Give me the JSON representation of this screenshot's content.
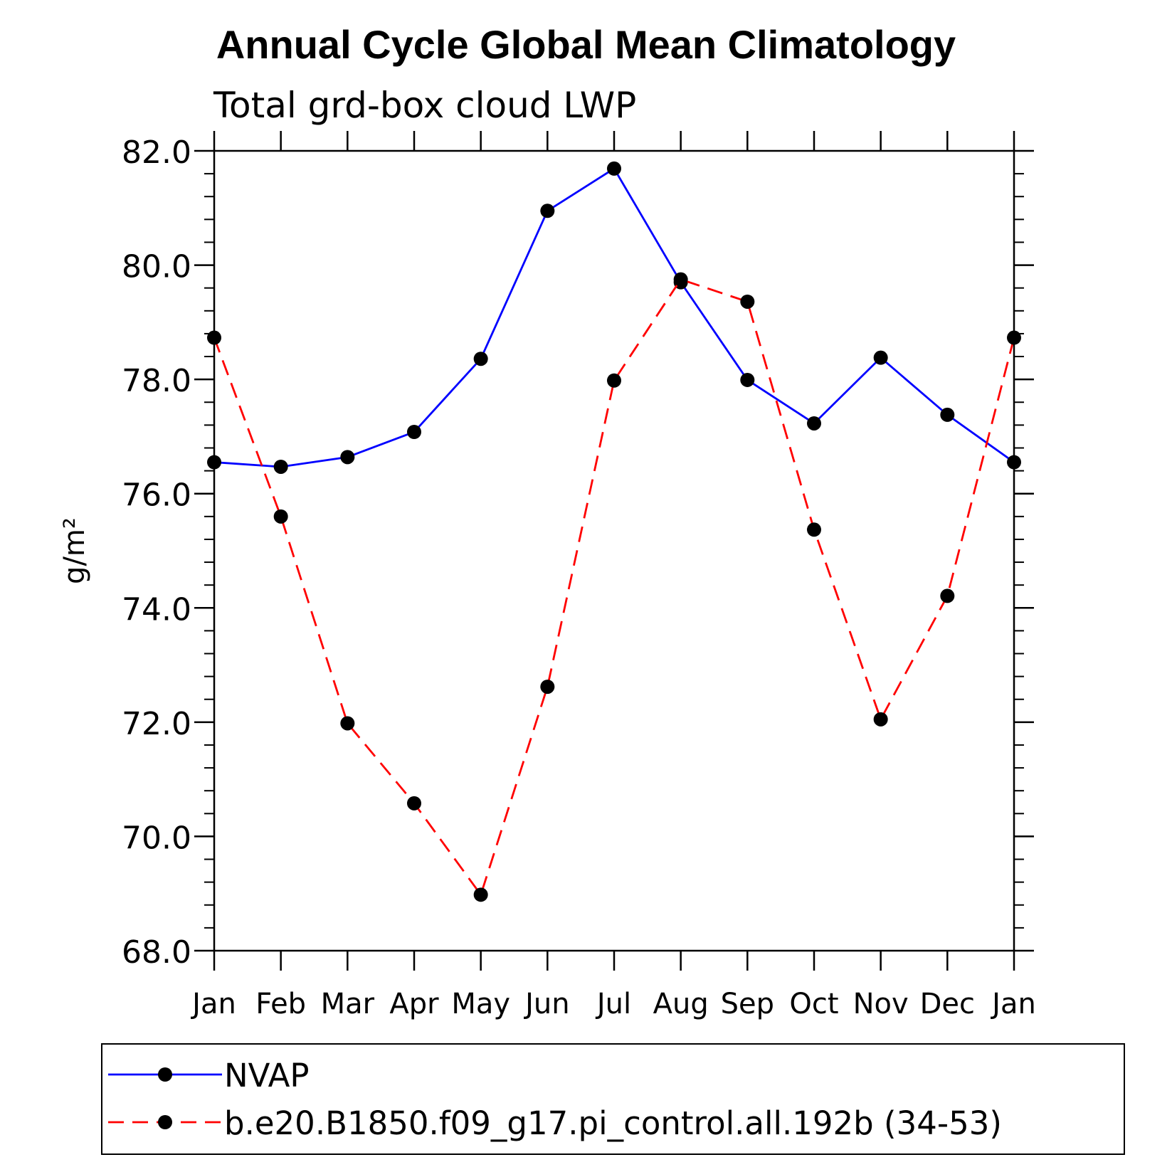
{
  "title": "Annual Cycle Global Mean Climatology",
  "chart_data": {
    "type": "line",
    "title": "Annual Cycle Global Mean Climatology",
    "subtitle": "Total grd-box cloud LWP",
    "ylabel": "g/m²",
    "xlabel": "",
    "categories": [
      "Jan",
      "Feb",
      "Mar",
      "Apr",
      "May",
      "Jun",
      "Jul",
      "Aug",
      "Sep",
      "Oct",
      "Nov",
      "Dec",
      "Jan"
    ],
    "ylim": [
      68,
      82
    ],
    "yticks": [
      "68.0",
      "70.0",
      "72.0",
      "74.0",
      "76.0",
      "78.0",
      "80.0",
      "82.0"
    ],
    "legend_position": "bottom",
    "series": [
      {
        "name": "NVAP",
        "color": "#0000ff",
        "style": "solid",
        "values": [
          76.55,
          76.47,
          76.64,
          77.08,
          78.36,
          80.95,
          81.69,
          79.7,
          77.99,
          77.23,
          78.38,
          77.38,
          76.55
        ]
      },
      {
        "name": "b.e20.B1850.f09_g17.pi_control.all.192b (34-53)",
        "color": "#ff0000",
        "style": "dashed",
        "values": [
          78.73,
          75.6,
          71.98,
          70.58,
          68.98,
          72.62,
          77.98,
          79.75,
          79.36,
          75.37,
          72.05,
          74.21,
          78.73
        ]
      }
    ]
  }
}
